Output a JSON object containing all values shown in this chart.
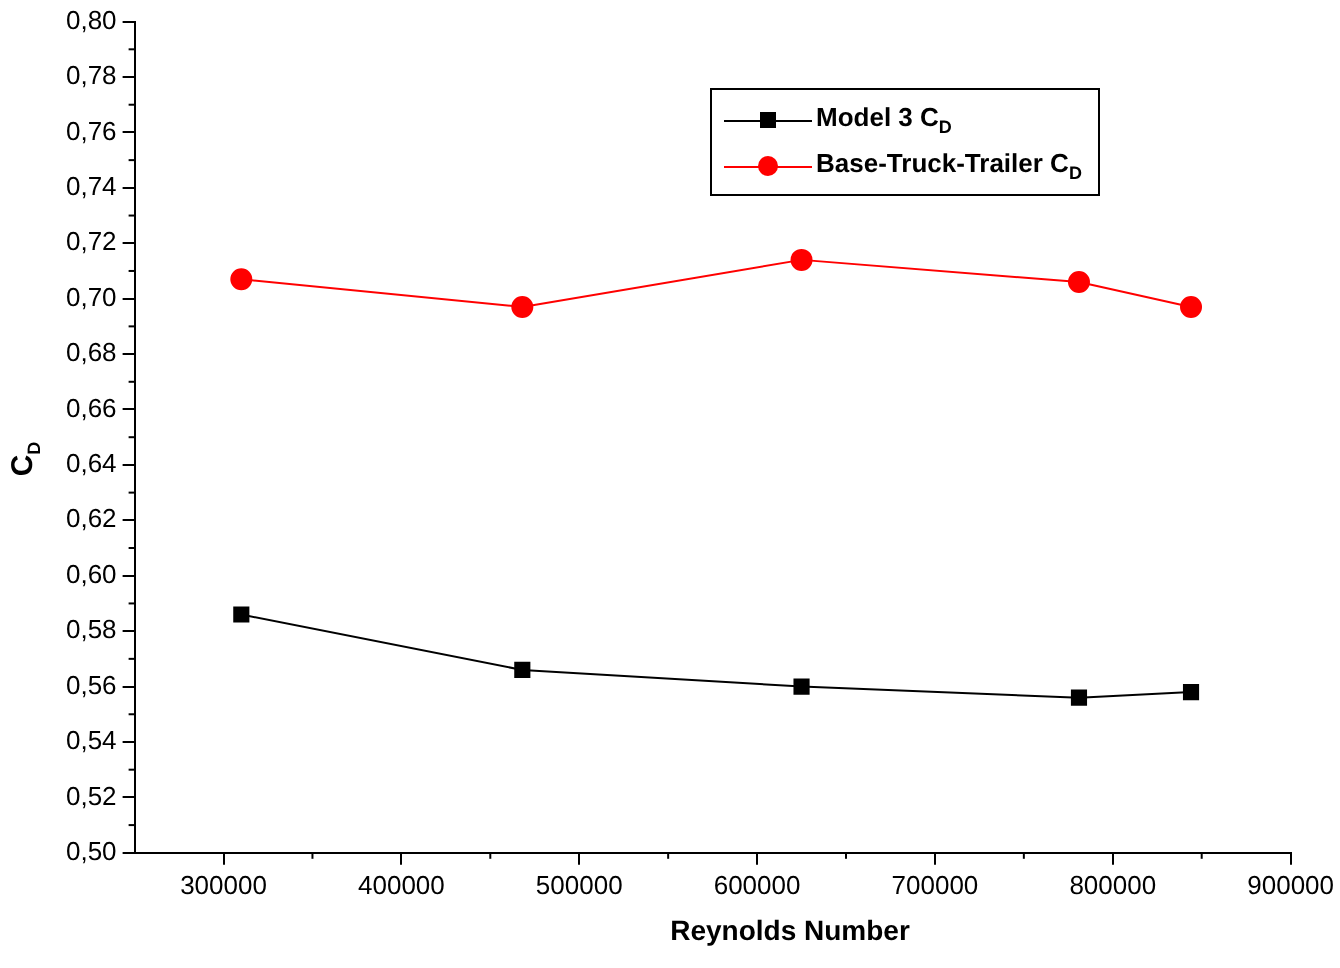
{
  "chart_data": {
    "type": "line",
    "xlabel": "Reynolds Number",
    "ylabel": "C$_{D}$",
    "x": [
      310000,
      468000,
      625000,
      781000,
      844000
    ],
    "series": [
      {
        "name": "Model 3 C$_{D}$",
        "color": "#000000",
        "marker": "square",
        "values": [
          0.586,
          0.566,
          0.56,
          0.556,
          0.558
        ]
      },
      {
        "name": "Base-Truck-Trailer C$_{D}$",
        "color": "#ff0000",
        "marker": "circle",
        "values": [
          0.707,
          0.697,
          0.714,
          0.706,
          0.697
        ]
      }
    ],
    "xlim": [
      250000,
      900000
    ],
    "xticks": [
      300000,
      400000,
      500000,
      600000,
      700000,
      800000,
      900000
    ],
    "ylim": [
      0.5,
      0.8
    ],
    "yticks": [
      {
        "value": 0.5,
        "label": "0,50"
      },
      {
        "value": 0.52,
        "label": "0,52"
      },
      {
        "value": 0.54,
        "label": "0,54"
      },
      {
        "value": 0.56,
        "label": "0,56"
      },
      {
        "value": 0.58,
        "label": "0,58"
      },
      {
        "value": 0.6,
        "label": "0,60"
      },
      {
        "value": 0.62,
        "label": "0,62"
      },
      {
        "value": 0.64,
        "label": "0,64"
      },
      {
        "value": 0.66,
        "label": "0,66"
      },
      {
        "value": 0.68,
        "label": "0,68"
      },
      {
        "value": 0.7,
        "label": "0,70"
      },
      {
        "value": 0.72,
        "label": "0,72"
      },
      {
        "value": 0.74,
        "label": "0,74"
      },
      {
        "value": 0.76,
        "label": "0,76"
      },
      {
        "value": 0.78,
        "label": "0,78"
      },
      {
        "value": 0.8,
        "label": "0,80"
      }
    ],
    "grid": false,
    "legend": "top right"
  }
}
